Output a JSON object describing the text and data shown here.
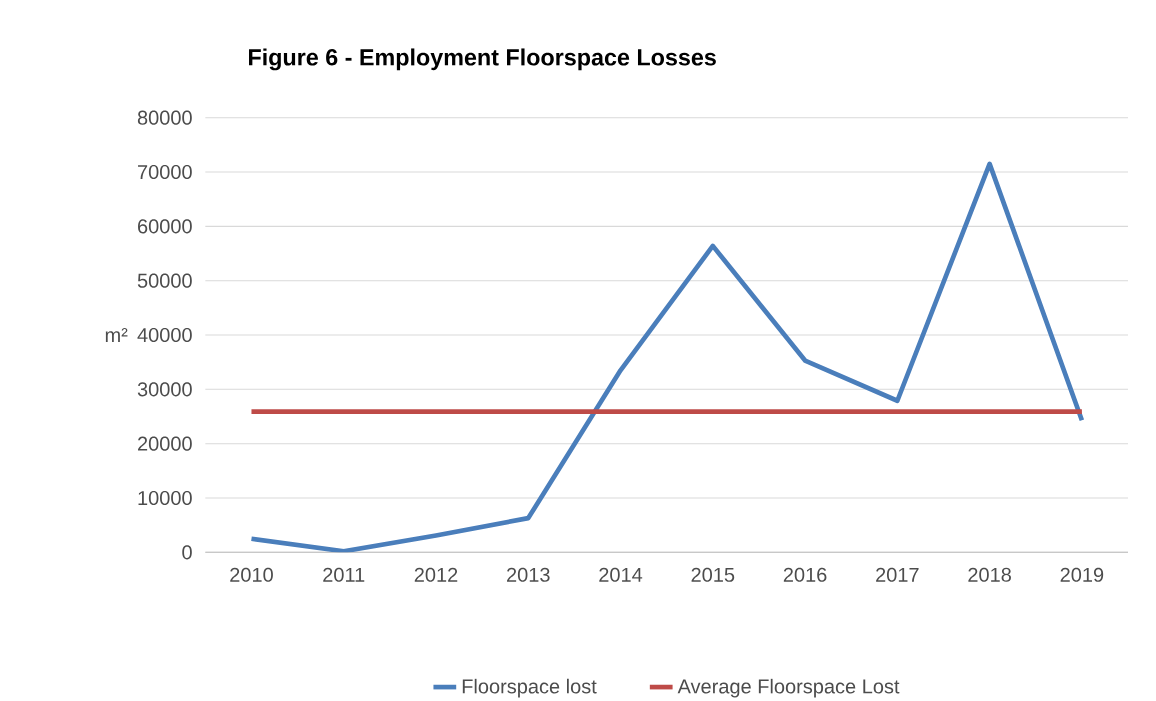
{
  "chart_data": {
    "type": "line",
    "title": "Figure 6 - Employment Floorspace Losses",
    "ylabel": "m²",
    "categories": [
      "2010",
      "2011",
      "2012",
      "2013",
      "2014",
      "2015",
      "2016",
      "2017",
      "2018",
      "2019"
    ],
    "series": [
      {
        "name": "Floorspace lost",
        "color": "#4a7ebb",
        "values": [
          2500,
          200,
          3100,
          6300,
          33500,
          56400,
          35300,
          27900,
          71500,
          24300
        ]
      },
      {
        "name": "Average Floorspace Lost",
        "color": "#be4b48",
        "values": [
          25900,
          25900,
          25900,
          25900,
          25900,
          25900,
          25900,
          25900,
          25900,
          25900
        ]
      }
    ],
    "ylim": [
      0,
      80000
    ],
    "yticks": [
      0,
      10000,
      20000,
      30000,
      40000,
      50000,
      60000,
      70000,
      80000
    ],
    "grid": "y",
    "legend": "bottom"
  }
}
